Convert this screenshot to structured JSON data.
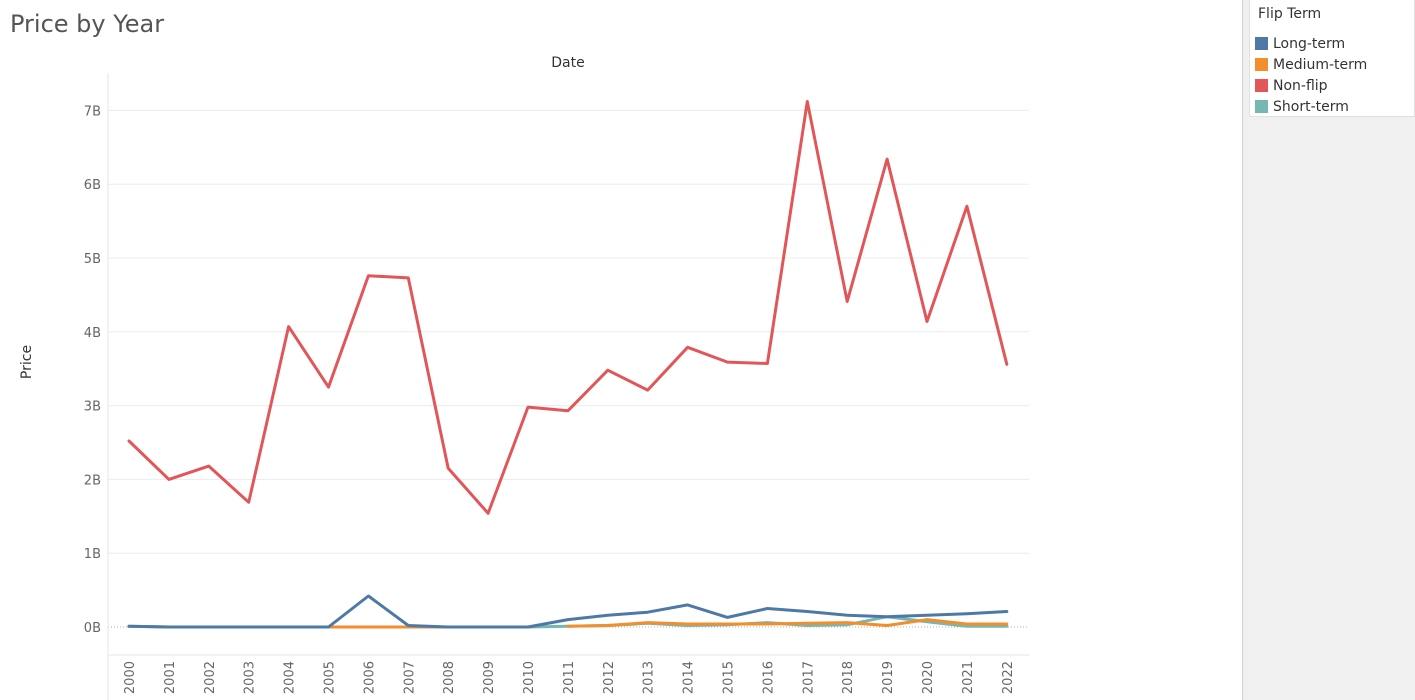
{
  "chart_data": {
    "type": "line",
    "title": "Price by Year",
    "xlabel": "Date",
    "ylabel": "Price",
    "x": [
      "2000",
      "2001",
      "2002",
      "2003",
      "2004",
      "2005",
      "2006",
      "2007",
      "2008",
      "2009",
      "2010",
      "2011",
      "2012",
      "2013",
      "2014",
      "2015",
      "2016",
      "2017",
      "2018",
      "2019",
      "2020",
      "2021",
      "2022"
    ],
    "y_ticks": [
      {
        "value": 0,
        "label": "0B"
      },
      {
        "value": 1,
        "label": "1B"
      },
      {
        "value": 2,
        "label": "2B"
      },
      {
        "value": 3,
        "label": "3B"
      },
      {
        "value": 4,
        "label": "4B"
      },
      {
        "value": 5,
        "label": "5B"
      },
      {
        "value": 6,
        "label": "6B"
      },
      {
        "value": 7,
        "label": "7B"
      }
    ],
    "ylim": [
      -0.37,
      7.3
    ],
    "y_unit": "billions",
    "grid": true,
    "legend_placement": "right",
    "series": [
      {
        "name": "Long-term",
        "color": "#4e79a7",
        "values": [
          0.01,
          0.0,
          0.0,
          0.0,
          0.0,
          0.0,
          0.42,
          0.02,
          0.0,
          0.0,
          0.0,
          0.1,
          0.16,
          0.2,
          0.3,
          0.13,
          0.25,
          0.21,
          0.16,
          0.14,
          0.16,
          0.18,
          0.21
        ]
      },
      {
        "name": "Medium-term",
        "color": "#f28e2b",
        "values": [
          null,
          null,
          null,
          null,
          null,
          0.0,
          0.0,
          0.0,
          0.0,
          null,
          null,
          0.01,
          0.02,
          0.06,
          0.04,
          0.04,
          0.04,
          0.05,
          0.06,
          0.02,
          0.1,
          0.04,
          0.04
        ]
      },
      {
        "name": "Non-flip",
        "color": "#e15759",
        "values": [
          2.52,
          2.0,
          2.18,
          1.69,
          4.07,
          3.25,
          4.76,
          4.73,
          2.15,
          1.54,
          2.98,
          2.93,
          3.48,
          3.21,
          3.79,
          3.59,
          3.57,
          7.12,
          4.41,
          6.34,
          4.14,
          5.7,
          3.56
        ]
      },
      {
        "name": "Short-term",
        "color": "#76b7b2",
        "values": [
          0.01,
          0.0,
          null,
          null,
          null,
          null,
          null,
          null,
          null,
          null,
          0.0,
          0.01,
          0.02,
          0.05,
          0.02,
          0.03,
          0.06,
          0.02,
          0.03,
          0.14,
          0.07,
          0.01,
          0.01
        ]
      }
    ]
  },
  "legend": {
    "title": "Flip Term"
  }
}
